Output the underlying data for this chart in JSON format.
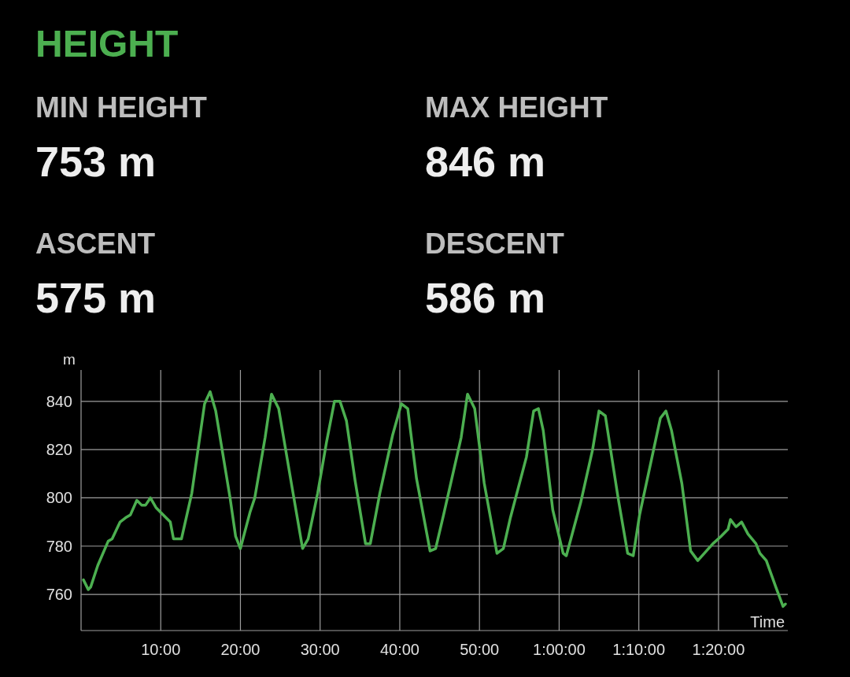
{
  "chart_data": {
    "type": "line",
    "title": "HEIGHT",
    "annotations": [
      "MIN HEIGHT",
      "753 m",
      "MAX HEIGHT",
      "846 m",
      "ASCENT",
      "575 m",
      "DESCENT",
      "586 m"
    ],
    "xlabel": "Time",
    "ylabel": "m",
    "series": [
      {
        "color": "#4caf50",
        "x": [
          0.3,
          0.9,
          1.2,
          2.1,
          3.4,
          3.9,
          4.9,
          5.7,
          6.2,
          7.0,
          7.6,
          8.1,
          8.7,
          9.4,
          10.6,
          11.2,
          11.6,
          12.6,
          13.9,
          15.5,
          16.2,
          16.9,
          18.2,
          18.7,
          19.4,
          20.0,
          21.2,
          21.8,
          23.1,
          23.9,
          24.8,
          26.5,
          27.8,
          28.5,
          29.7,
          30.8,
          31.8,
          32.5,
          33.3,
          34.4,
          35.7,
          36.3,
          37.5,
          39.1,
          40.2,
          41.0,
          42.1,
          43.8,
          44.5,
          45.5,
          47.7,
          48.5,
          49.4,
          50.6,
          52.2,
          53.0,
          53.9,
          55.9,
          56.8,
          57.4,
          58.0,
          59.2,
          60.5,
          60.9,
          62.7,
          64.2,
          65.0,
          65.8,
          67.4,
          68.6,
          69.3,
          70.1,
          72.7,
          73.4,
          74.1,
          75.4,
          76.5,
          77.4,
          79.3,
          80.3,
          81.2,
          81.5,
          82.2,
          82.9,
          83.7,
          84.7,
          85.2,
          86.0,
          87.2,
          88.1,
          88.4
        ],
        "values": [
          766,
          762,
          763,
          772,
          782,
          783,
          790,
          792,
          793,
          799,
          797,
          797,
          800,
          796,
          792,
          790,
          783,
          783,
          802,
          839,
          844,
          836,
          810,
          800,
          784,
          779,
          794,
          800,
          825,
          843,
          837,
          804,
          779,
          783,
          802,
          823,
          840,
          840,
          832,
          807,
          781,
          781,
          802,
          826,
          839,
          837,
          808,
          778,
          779,
          793,
          825,
          843,
          837,
          806,
          777,
          779,
          792,
          817,
          836,
          837,
          828,
          795,
          777,
          776,
          798,
          820,
          836,
          834,
          800,
          777,
          776,
          793,
          833,
          836,
          828,
          806,
          778,
          774,
          781,
          784,
          787,
          791,
          788,
          790,
          785,
          781,
          777,
          774,
          763,
          755,
          756
        ]
      }
    ],
    "xlim": [
      0,
      88.7
    ],
    "ylim": [
      745,
      853
    ],
    "xticks": [
      {
        "value": 10,
        "label": "10:00"
      },
      {
        "value": 20,
        "label": "20:00"
      },
      {
        "value": 30,
        "label": "30:00"
      },
      {
        "value": 40,
        "label": "40:00"
      },
      {
        "value": 50,
        "label": "50:00"
      },
      {
        "value": 60,
        "label": "1:00:00"
      },
      {
        "value": 70,
        "label": "1:10:00"
      },
      {
        "value": 80,
        "label": "1:20:00"
      }
    ],
    "yticks": [
      760,
      780,
      800,
      820,
      840
    ],
    "grid": true,
    "marker": "none",
    "line_style": "solid"
  }
}
